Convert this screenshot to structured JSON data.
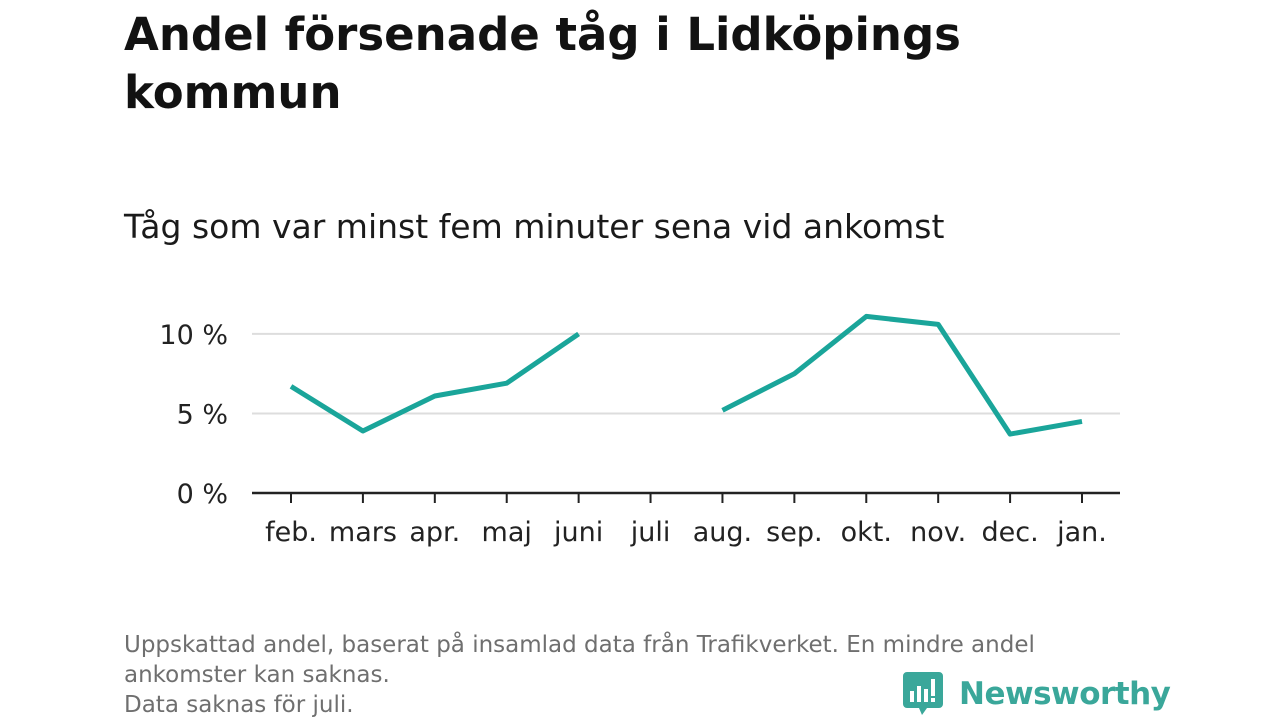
{
  "title": "Andel försenade tåg i Lidköpings kommun",
  "subtitle": "Tåg som var minst fem minuter sena vid ankomst",
  "chart_data": {
    "type": "line",
    "categories": [
      "feb.",
      "mars",
      "apr.",
      "maj",
      "juni",
      "juli",
      "aug.",
      "sep.",
      "okt.",
      "nov.",
      "dec.",
      "jan."
    ],
    "series": [
      {
        "values": [
          6.7,
          3.9,
          6.1,
          6.9,
          10.0,
          null,
          5.2,
          7.5,
          11.1,
          10.6,
          3.7,
          4.5
        ]
      }
    ],
    "ylim": [
      0,
      11
    ],
    "yticks": [
      0,
      5,
      10
    ],
    "ytick_labels": [
      "0 %",
      "5 %",
      "10 %"
    ],
    "grid": true,
    "line_color": "#1aa59a"
  },
  "footnote": {
    "line1": "Uppskattad andel, baserat på insamlad data från Trafikverket. En mindre andel",
    "line2": "ankomster kan saknas.",
    "line3": "Data saknas för juli."
  },
  "brand": {
    "name": "Newsworthy",
    "icon": "newsworthy-logo-icon",
    "color": "#3aa79a"
  }
}
